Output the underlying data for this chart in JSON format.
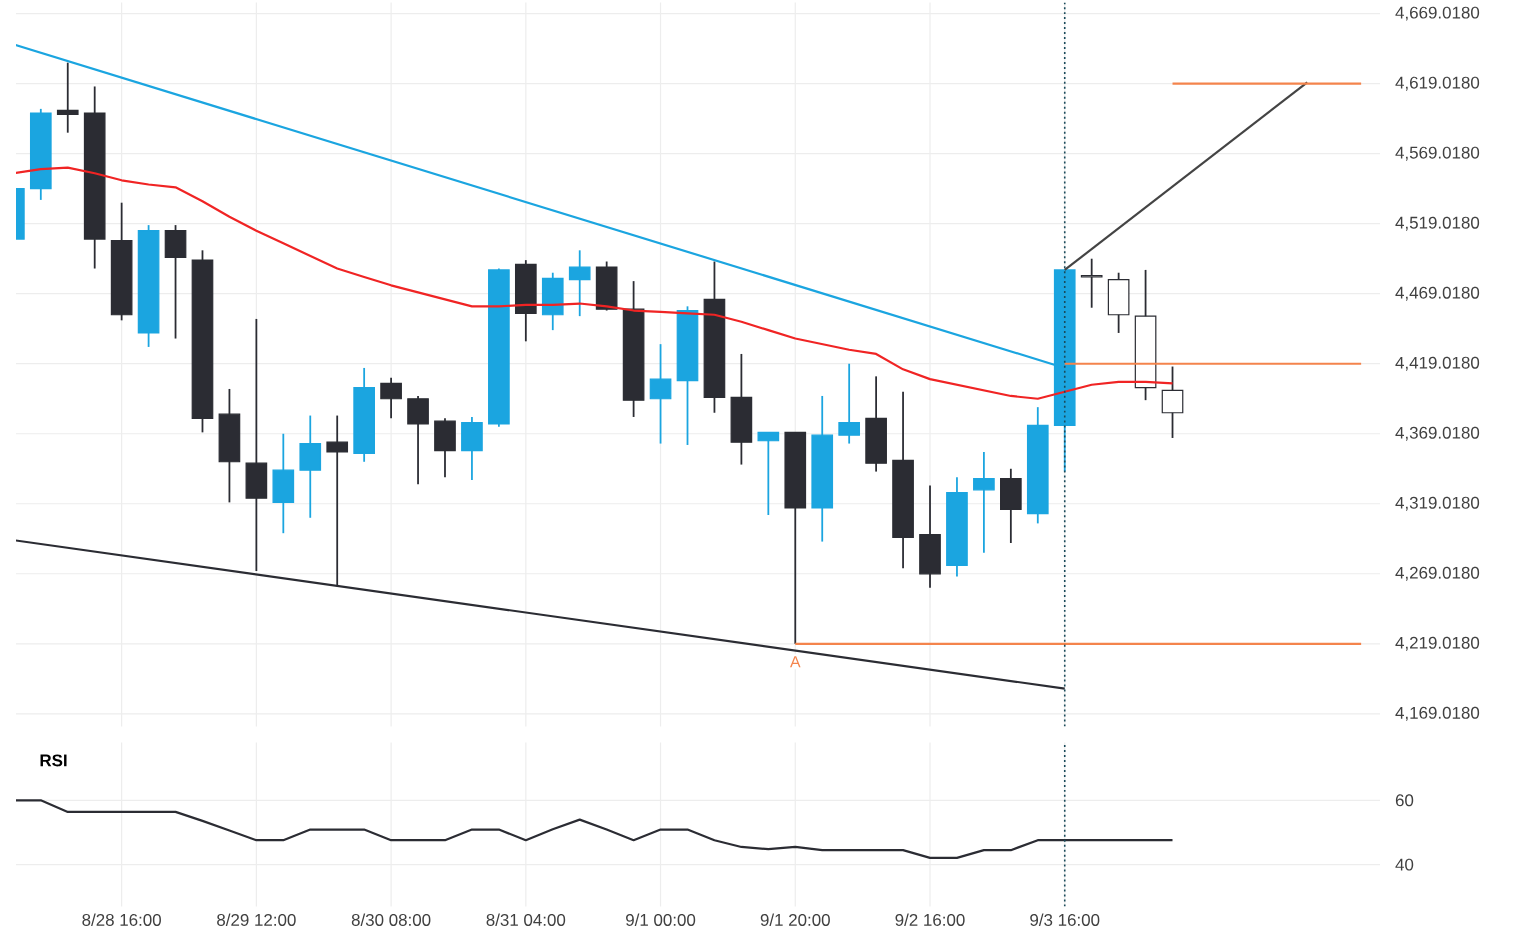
{
  "chart_data": [
    {
      "type": "candlestick",
      "categories": [
        null,
        null,
        null,
        null,
        "8/28 16:00",
        null,
        null,
        null,
        null,
        "8/29 12:00",
        null,
        null,
        null,
        null,
        "8/30 08:00",
        null,
        null,
        null,
        null,
        "8/31 04:00",
        null,
        null,
        null,
        null,
        "9/1 00:00",
        null,
        null,
        null,
        null,
        "9/1 20:00",
        null,
        null,
        null,
        null,
        "9/2 16:00",
        null,
        null,
        null,
        null,
        "9/3 16:00",
        null,
        null,
        null,
        null,
        null,
        null,
        null,
        null,
        null,
        null,
        null
      ],
      "ohlc": [
        [
          4508,
          4544,
          4508,
          4544
        ],
        [
          4544,
          4601,
          4536,
          4598
        ],
        [
          4600,
          4634,
          4584,
          4597
        ],
        [
          4598,
          4617,
          4487,
          4508
        ],
        [
          4507,
          4534,
          4450,
          4454
        ],
        [
          4441,
          4518,
          4431,
          4514
        ],
        [
          4514,
          4518,
          4437,
          4495
        ],
        [
          4493,
          4500,
          4370,
          4380
        ],
        [
          4383,
          4401,
          4320,
          4349
        ],
        [
          4348,
          4451,
          4271,
          4323
        ],
        [
          4320,
          4369,
          4298,
          4343
        ],
        [
          4343,
          4382,
          4309,
          4362
        ],
        [
          4363,
          4382,
          4260,
          4356
        ],
        [
          4355,
          4416,
          4349,
          4402
        ],
        [
          4405,
          4409,
          4380,
          4394
        ],
        [
          4394,
          4396,
          4333,
          4376
        ],
        [
          4378,
          4380,
          4338,
          4357
        ],
        [
          4357,
          4381,
          4336,
          4377
        ],
        [
          4376,
          4487,
          4374,
          4486
        ],
        [
          4490,
          4493,
          4435,
          4455
        ],
        [
          4454,
          4484,
          4443,
          4480
        ],
        [
          4479,
          4500,
          4453,
          4488
        ],
        [
          4488,
          4492,
          4457,
          4458
        ],
        [
          4458,
          4478,
          4381,
          4393
        ],
        [
          4394,
          4433,
          4362,
          4408
        ],
        [
          4407,
          4460,
          4361,
          4457
        ],
        [
          4465,
          4492,
          4384,
          4395
        ],
        [
          4395,
          4426,
          4347,
          4363
        ],
        [
          4364,
          4370,
          4311,
          4370
        ],
        [
          4370,
          4370,
          4219,
          4316
        ],
        [
          4316,
          4396,
          4292,
          4368
        ],
        [
          4368,
          4419,
          4362,
          4377
        ],
        [
          4380,
          4410,
          4342,
          4348
        ],
        [
          4350,
          4399,
          4273,
          4295
        ],
        [
          4297,
          4332,
          4259,
          4269
        ],
        [
          4275,
          4338,
          4267,
          4327
        ],
        [
          4329,
          4356,
          4284,
          4337
        ],
        [
          4337,
          4344,
          4291,
          4315
        ],
        [
          4312,
          4388,
          4305,
          4375
        ],
        [
          4375,
          4486,
          4342,
          4486
        ],
        [
          4482,
          4494,
          4459,
          4481
        ],
        [
          4479,
          4484,
          4441,
          4454
        ],
        [
          4453,
          4486,
          4393,
          4402
        ],
        [
          4400,
          4417,
          4366,
          4384
        ],
        null,
        null,
        null,
        null,
        null,
        null,
        null
      ],
      "colors": [
        "#1ba5e0",
        "#1ba5e0",
        "#2b2c33",
        "#2b2c33",
        "#2b2c33",
        "#1ba5e0",
        "#2b2c33",
        "#2b2c33",
        "#2b2c33",
        "#2b2c33",
        "#1ba5e0",
        "#1ba5e0",
        "#2b2c33",
        "#1ba5e0",
        "#2b2c33",
        "#2b2c33",
        "#2b2c33",
        "#1ba5e0",
        "#1ba5e0",
        "#2b2c33",
        "#1ba5e0",
        "#1ba5e0",
        "#2b2c33",
        "#2b2c33",
        "#1ba5e0",
        "#1ba5e0",
        "#2b2c33",
        "#2b2c33",
        "#1ba5e0",
        "#2b2c33",
        "#1ba5e0",
        "#1ba5e0",
        "#2b2c33",
        "#2b2c33",
        "#2b2c33",
        "#1ba5e0",
        "#1ba5e0",
        "#2b2c33",
        "#1ba5e0",
        "#1ba5e0",
        "#ffffff",
        "#ffffff",
        "#ffffff",
        "#ffffff",
        null,
        null,
        null,
        null,
        null,
        null,
        null
      ],
      "series": [
        {
          "type": "line",
          "color": "#f02424",
          "values": [
            4555,
            4558,
            4559,
            4555,
            4550,
            4547,
            4545,
            4535,
            4524,
            4514,
            4505,
            4496,
            4487,
            4481,
            4475,
            4470,
            4465,
            4460,
            4460,
            4461,
            4461,
            4462,
            4460,
            4457,
            4456,
            4455,
            4454,
            4449,
            4443,
            4437,
            4433,
            4429,
            4426,
            4415,
            4408,
            4404,
            4400,
            4396,
            4394,
            4399,
            4404,
            4406,
            4406,
            4405,
            null,
            null,
            null,
            null,
            null,
            null,
            null
          ]
        },
        {
          "type": "line",
          "color": "#1ba5e0",
          "values": [
            4647,
            null,
            null,
            null,
            null,
            null,
            null,
            null,
            null,
            null,
            null,
            null,
            null,
            null,
            null,
            null,
            null,
            null,
            null,
            null,
            null,
            null,
            null,
            null,
            null,
            null,
            null,
            null,
            null,
            null,
            null,
            null,
            null,
            null,
            null,
            null,
            null,
            null,
            null,
            4416,
            null,
            null,
            null,
            null,
            null,
            null,
            null,
            null,
            null,
            null,
            null
          ]
        },
        {
          "type": "line",
          "color": "#2b2c33",
          "values": [
            4293,
            null,
            null,
            null,
            null,
            null,
            null,
            null,
            null,
            null,
            null,
            null,
            null,
            null,
            null,
            null,
            null,
            null,
            null,
            null,
            null,
            null,
            null,
            null,
            null,
            null,
            null,
            null,
            null,
            null,
            null,
            null,
            null,
            null,
            null,
            null,
            null,
            null,
            null,
            4187,
            null,
            null,
            null,
            null,
            null,
            null,
            null,
            null,
            null,
            null,
            null
          ]
        },
        {
          "type": "line",
          "color": "#444444",
          "values": [
            null,
            null,
            null,
            null,
            null,
            null,
            null,
            null,
            null,
            null,
            null,
            null,
            null,
            null,
            null,
            null,
            null,
            null,
            null,
            null,
            null,
            null,
            null,
            null,
            null,
            null,
            null,
            null,
            null,
            null,
            null,
            null,
            null,
            null,
            null,
            null,
            null,
            null,
            null,
            4486,
            null,
            null,
            null,
            null,
            null,
            null,
            null,
            null,
            4620,
            null,
            null
          ]
        },
        {
          "type": "line",
          "color": "#f4844c",
          "values": [
            null,
            null,
            null,
            null,
            null,
            null,
            null,
            null,
            null,
            null,
            null,
            null,
            null,
            null,
            null,
            null,
            null,
            null,
            null,
            null,
            null,
            null,
            null,
            null,
            null,
            null,
            null,
            null,
            null,
            null,
            null,
            null,
            null,
            null,
            null,
            null,
            null,
            null,
            null,
            null,
            null,
            null,
            null,
            4619,
            null,
            null,
            null,
            null,
            null,
            null,
            4619
          ]
        },
        {
          "type": "line",
          "color": "#f4844c",
          "values": [
            null,
            null,
            null,
            null,
            null,
            null,
            null,
            null,
            null,
            null,
            null,
            null,
            null,
            null,
            null,
            null,
            null,
            null,
            null,
            null,
            null,
            null,
            null,
            null,
            null,
            null,
            null,
            null,
            null,
            null,
            null,
            null,
            null,
            null,
            null,
            null,
            null,
            null,
            null,
            4419,
            null,
            null,
            null,
            null,
            null,
            null,
            null,
            null,
            null,
            null,
            4419
          ]
        },
        {
          "type": "line",
          "color": "#f4844c",
          "values": [
            null,
            null,
            null,
            null,
            null,
            null,
            null,
            null,
            null,
            null,
            null,
            null,
            null,
            null,
            null,
            null,
            null,
            null,
            null,
            null,
            null,
            null,
            null,
            null,
            null,
            null,
            null,
            null,
            null,
            4219,
            null,
            null,
            null,
            null,
            null,
            null,
            null,
            null,
            null,
            null,
            null,
            null,
            null,
            null,
            null,
            null,
            null,
            null,
            null,
            null,
            4219
          ]
        }
      ],
      "ylim": [
        4160,
        4677
      ],
      "yticks": [
        {
          "value": 4169.018,
          "label": "4,169.0180"
        },
        {
          "value": 4219.018,
          "label": "4,219.0180"
        },
        {
          "value": 4269.018,
          "label": "4,269.0180"
        },
        {
          "value": 4319.018,
          "label": "4,319.0180"
        },
        {
          "value": 4369.018,
          "label": "4,369.0180"
        },
        {
          "value": 4419.018,
          "label": "4,419.0180"
        },
        {
          "value": 4469.018,
          "label": "4,469.0180"
        },
        {
          "value": 4519.018,
          "label": "4,519.0180"
        },
        {
          "value": 4569.018,
          "label": "4,569.0180"
        },
        {
          "value": 4619.018,
          "label": "4,619.0180"
        },
        {
          "value": 4669.018,
          "label": "4,669.0180"
        }
      ],
      "grid": true,
      "tick_labels": "y",
      "marker": "none",
      "ref_lines": [
        {
          "axis": "x",
          "value": "9/3 16:00",
          "color": "#1a4a5a",
          "line_style": "dotted"
        }
      ],
      "annotations": [
        {
          "text": "A",
          "x": "9/1 20:00",
          "y": 4219
        }
      ]
    },
    {
      "type": "line",
      "title": "RSI",
      "categories": [
        null,
        null,
        null,
        null,
        "8/28 16:00",
        null,
        null,
        null,
        null,
        "8/29 12:00",
        null,
        null,
        null,
        null,
        "8/30 08:00",
        null,
        null,
        null,
        null,
        "8/31 04:00",
        null,
        null,
        null,
        null,
        "9/1 00:00",
        null,
        null,
        null,
        null,
        "9/1 20:00",
        null,
        null,
        null,
        null,
        "9/2 16:00",
        null,
        null,
        null,
        null,
        "9/3 16:00",
        null,
        null,
        null,
        null,
        null,
        null,
        null,
        null,
        null,
        null,
        null
      ],
      "series": [
        {
          "color": "#2b2c33",
          "values": [
            60,
            60,
            56.4,
            56.4,
            56.4,
            56.4,
            56.4,
            53.6,
            50.6,
            47.6,
            47.6,
            50.9,
            50.9,
            50.9,
            47.6,
            47.6,
            47.6,
            50.9,
            50.9,
            47.6,
            51,
            54,
            50.9,
            47.6,
            50.9,
            50.9,
            47.6,
            45.5,
            44.8,
            45.5,
            44.5,
            44.5,
            44.5,
            44.5,
            42.1,
            42.1,
            44.5,
            44.5,
            47.6,
            47.6,
            47.6,
            47.6,
            47.6,
            47.6,
            null,
            null,
            null,
            null,
            null,
            null,
            null
          ]
        }
      ],
      "ylim": [
        27,
        78
      ],
      "yticks": [
        40,
        60
      ],
      "grid": true,
      "marker": "none",
      "ref_lines": [
        {
          "axis": "x",
          "value": "9/3 16:00",
          "color": "#1a4a5a",
          "line_style": "dotted"
        }
      ]
    }
  ]
}
